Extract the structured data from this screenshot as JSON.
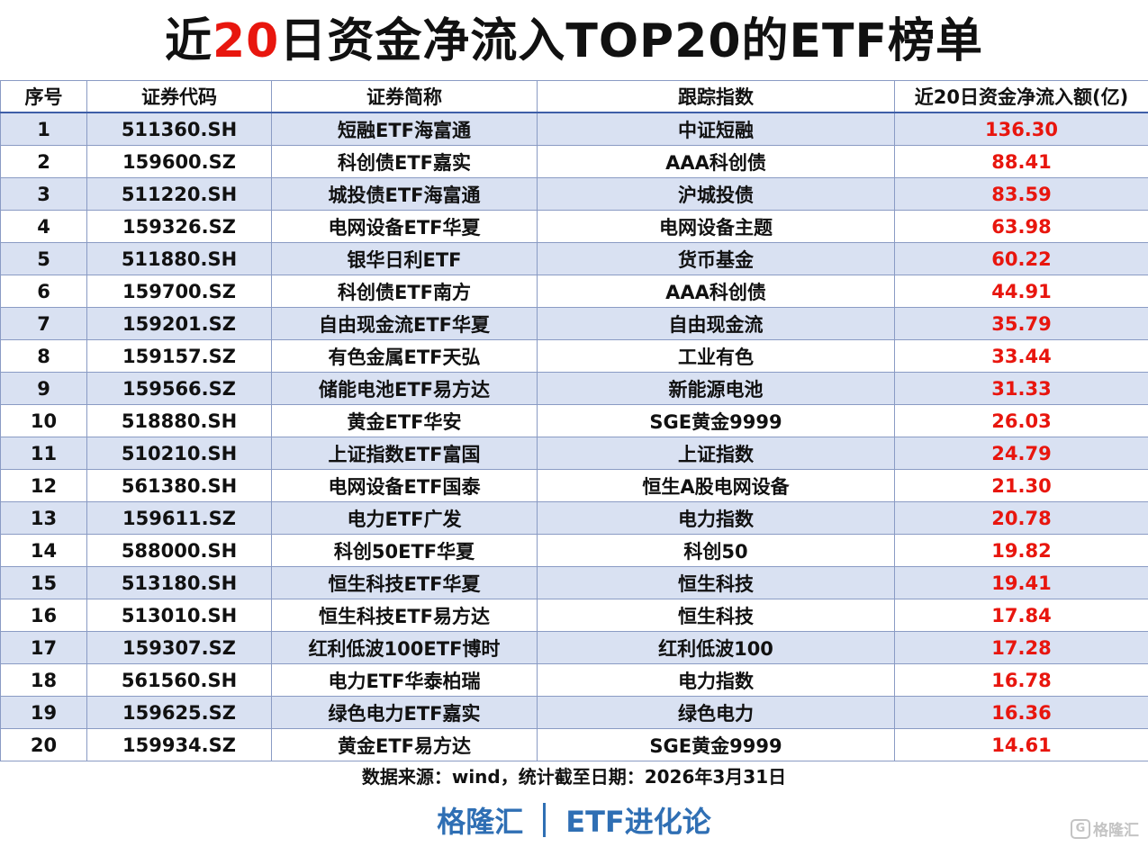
{
  "title": {
    "prefix": "近",
    "highlight": "20",
    "suffix": "日资金净流入TOP20的ETF榜单"
  },
  "table": {
    "headers": [
      "序号",
      "证券代码",
      "证券简称",
      "跟踪指数",
      "近20日资金净流入额(亿)"
    ],
    "rows": [
      [
        "1",
        "511360.SH",
        "短融ETF海富通",
        "中证短融",
        "136.30"
      ],
      [
        "2",
        "159600.SZ",
        "科创债ETF嘉实",
        "AAA科创债",
        "88.41"
      ],
      [
        "3",
        "511220.SH",
        "城投债ETF海富通",
        "沪城投债",
        "83.59"
      ],
      [
        "4",
        "159326.SZ",
        "电网设备ETF华夏",
        "电网设备主题",
        "63.98"
      ],
      [
        "5",
        "511880.SH",
        "银华日利ETF",
        "货币基金",
        "60.22"
      ],
      [
        "6",
        "159700.SZ",
        "科创债ETF南方",
        "AAA科创债",
        "44.91"
      ],
      [
        "7",
        "159201.SZ",
        "自由现金流ETF华夏",
        "自由现金流",
        "35.79"
      ],
      [
        "8",
        "159157.SZ",
        "有色金属ETF天弘",
        "工业有色",
        "33.44"
      ],
      [
        "9",
        "159566.SZ",
        "储能电池ETF易方达",
        "新能源电池",
        "31.33"
      ],
      [
        "10",
        "518880.SH",
        "黄金ETF华安",
        "SGE黄金9999",
        "26.03"
      ],
      [
        "11",
        "510210.SH",
        "上证指数ETF富国",
        "上证指数",
        "24.79"
      ],
      [
        "12",
        "561380.SH",
        "电网设备ETF国泰",
        "恒生A股电网设备",
        "21.30"
      ],
      [
        "13",
        "159611.SZ",
        "电力ETF广发",
        "电力指数",
        "20.78"
      ],
      [
        "14",
        "588000.SH",
        "科创50ETF华夏",
        "科创50",
        "19.82"
      ],
      [
        "15",
        "513180.SH",
        "恒生科技ETF华夏",
        "恒生科技",
        "19.41"
      ],
      [
        "16",
        "513010.SH",
        "恒生科技ETF易方达",
        "恒生科技",
        "17.84"
      ],
      [
        "17",
        "159307.SZ",
        "红利低波100ETF博时",
        "红利低波100",
        "17.28"
      ],
      [
        "18",
        "561560.SH",
        "电力ETF华泰柏瑞",
        "电力指数",
        "16.78"
      ],
      [
        "19",
        "159625.SZ",
        "绿色电力ETF嘉实",
        "绿色电力",
        "16.36"
      ],
      [
        "20",
        "159934.SZ",
        "黄金ETF易方达",
        "SGE黄金9999",
        "14.61"
      ]
    ]
  },
  "source": "数据来源：wind，统计截至日期：2026年3月31日",
  "brand": {
    "left": "格隆汇",
    "right": "ETF进化论"
  },
  "watermark": {
    "icon": "G",
    "text": "格隆汇"
  },
  "colors": {
    "accent_red": "#e8160e",
    "brand_blue": "#2f6fb4",
    "stripe": "#d9e1f2",
    "border": "#8a9bc4"
  }
}
